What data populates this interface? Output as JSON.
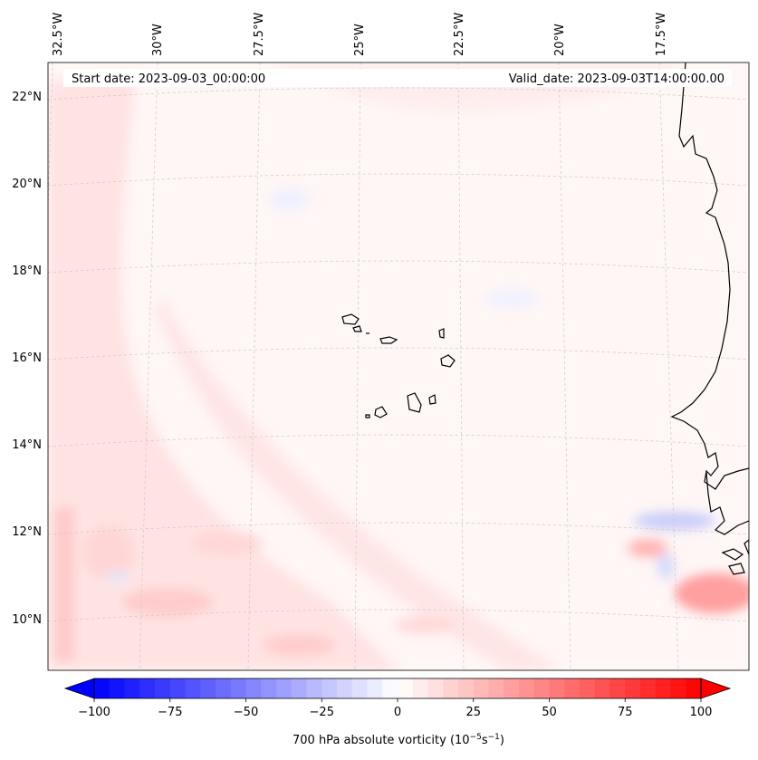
{
  "header": {
    "start_date": "Start date: 2023-09-03_00:00:00",
    "valid_date": "Valid_date: 2023-09-03T14:00:00.00"
  },
  "lon_ticks": [
    "32.5°W",
    "30°W",
    "27.5°W",
    "25°W",
    "22.5°W",
    "20°W",
    "17.5°W"
  ],
  "lat_ticks": [
    "22°N",
    "20°N",
    "18°N",
    "16°N",
    "14°N",
    "12°N",
    "10°N"
  ],
  "colorbar": {
    "ticks": [
      "−100",
      "−75",
      "−50",
      "−25",
      "0",
      "25",
      "50",
      "75",
      "100"
    ],
    "label_text": "700 hPa absolute vorticity",
    "label_units": "(10",
    "label_exp1": "−5",
    "label_mid": "s",
    "label_exp2": "−1",
    "label_close": ")",
    "min": -100,
    "max": 100,
    "low_color": "#0000ff",
    "mid_color": "#ffffff",
    "high_color": "#ff0000"
  },
  "colors": {
    "background_field": "#fff6f6",
    "positive_band": "#ffe3e3",
    "positive_strong": "#ffc4c4",
    "negative_patch": "#c9cdfa",
    "coastline": "#000000",
    "gridline": "#c8c8c8"
  }
}
